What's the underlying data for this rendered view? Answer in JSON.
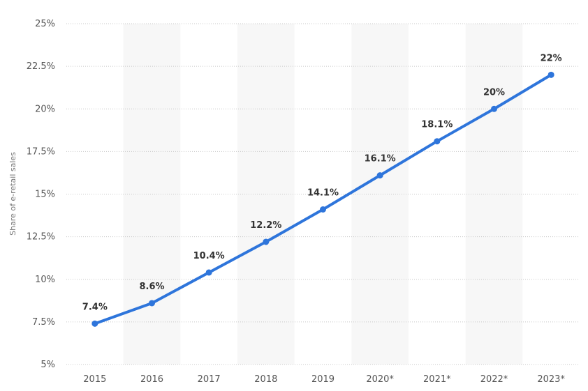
{
  "chart_data": {
    "type": "line",
    "title": "",
    "xlabel": "",
    "ylabel": "Share of e-retail sales",
    "categories": [
      "2015",
      "2016",
      "2017",
      "2018",
      "2019",
      "2020*",
      "2021*",
      "2022*",
      "2023*"
    ],
    "series": [
      {
        "values": [
          7.4,
          8.6,
          10.4,
          12.2,
          14.1,
          16.1,
          18.1,
          20,
          22
        ],
        "data_labels": [
          "7.4%",
          "8.6%",
          "10.4%",
          "12.2%",
          "14.1%",
          "16.1%",
          "18.1%",
          "20%",
          "22%"
        ]
      }
    ],
    "ylim": [
      5,
      25
    ],
    "y_ticks": [
      5,
      7.5,
      10,
      12.5,
      15,
      17.5,
      20,
      22.5,
      25
    ],
    "y_tick_labels": [
      "5%",
      "7.5%",
      "10%",
      "12.5%",
      "15%",
      "17.5%",
      "20%",
      "22.5%",
      "25%"
    ],
    "grid": true,
    "alternating_bands": true,
    "colors": {
      "line": "#2e75db",
      "band": "#f7f7f7",
      "grid": "#c8c8c8"
    }
  }
}
